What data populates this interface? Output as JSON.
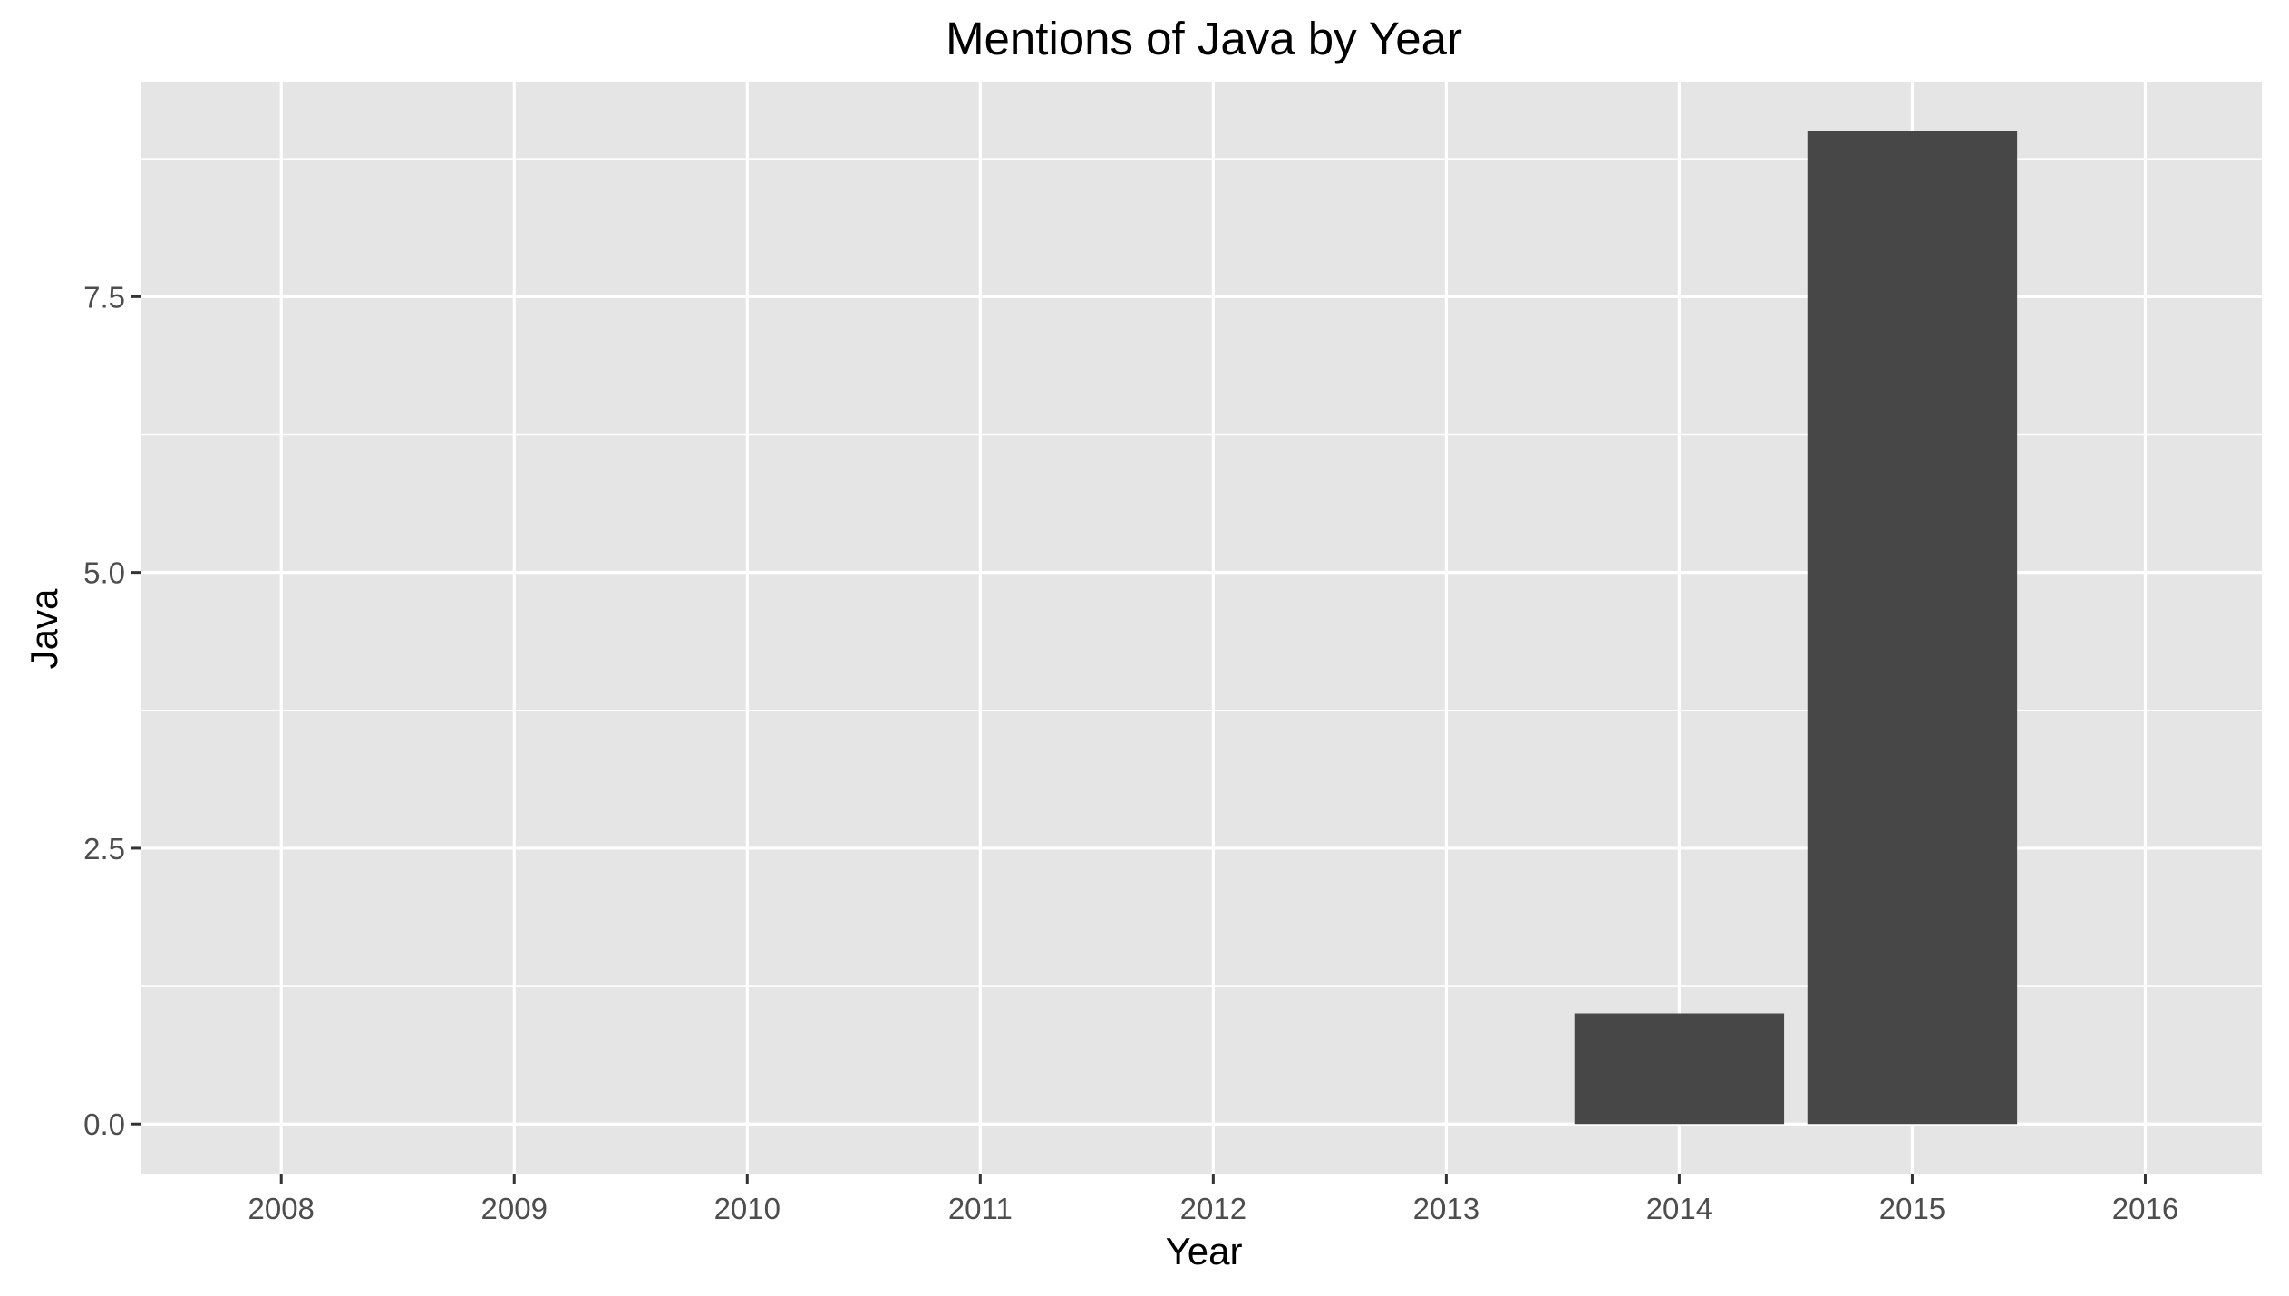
{
  "chart_data": {
    "type": "bar",
    "title": "Mentions of Java by Year",
    "xlabel": "Year",
    "ylabel": "Java",
    "x_ticks": [
      "2008",
      "2009",
      "2010",
      "2011",
      "2012",
      "2013",
      "2014",
      "2015",
      "2016"
    ],
    "y_ticks": [
      "0.0",
      "2.5",
      "5.0",
      "7.5"
    ],
    "categories": [
      2014,
      2015
    ],
    "values": [
      1,
      9
    ],
    "xlim": [
      2007.4,
      2016.5
    ],
    "ylim": [
      -0.45,
      9.45
    ],
    "grid": true,
    "legend": "none",
    "colors": {
      "panel": "#e5e5e5",
      "grid": "#ffffff",
      "bar": "#474747",
      "tick": "#333333",
      "tick_label": "#4d4d4d"
    }
  }
}
